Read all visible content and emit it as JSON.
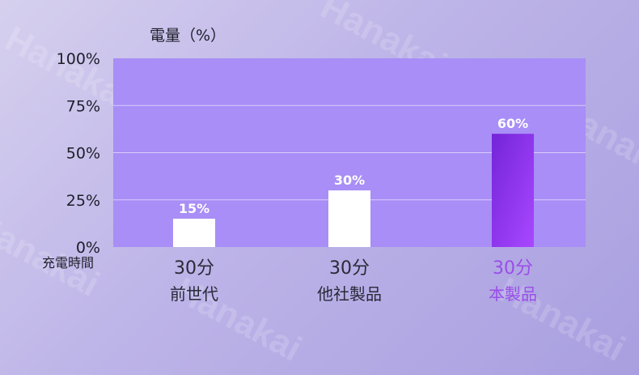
{
  "chart_data": {
    "type": "bar",
    "ylabel": "電量（%）",
    "xlabel": "充電時間",
    "ylim": [
      0,
      100
    ],
    "yticks": [
      0,
      25,
      50,
      75,
      100
    ],
    "ytick_labels": [
      "0%",
      "25%",
      "50%",
      "75%",
      "100%"
    ],
    "grid": true,
    "categories": [
      {
        "time": "30分",
        "name": "前世代"
      },
      {
        "time": "30分",
        "name": "他社製品"
      },
      {
        "time": "30分",
        "name": "本製品"
      }
    ],
    "values": [
      15,
      30,
      60
    ],
    "data_labels": [
      "15%",
      "30%",
      "60%"
    ],
    "highlight_index": 2
  },
  "colors": {
    "plot_background": "#a88ef6",
    "bar_default": "#ffffff",
    "bar_highlight_top": "#7424d8",
    "bar_highlight_bottom": "#a848ff",
    "highlight_text": "#9a4ee8",
    "gridline": "#d9ccff"
  },
  "watermark": "Hanakai"
}
